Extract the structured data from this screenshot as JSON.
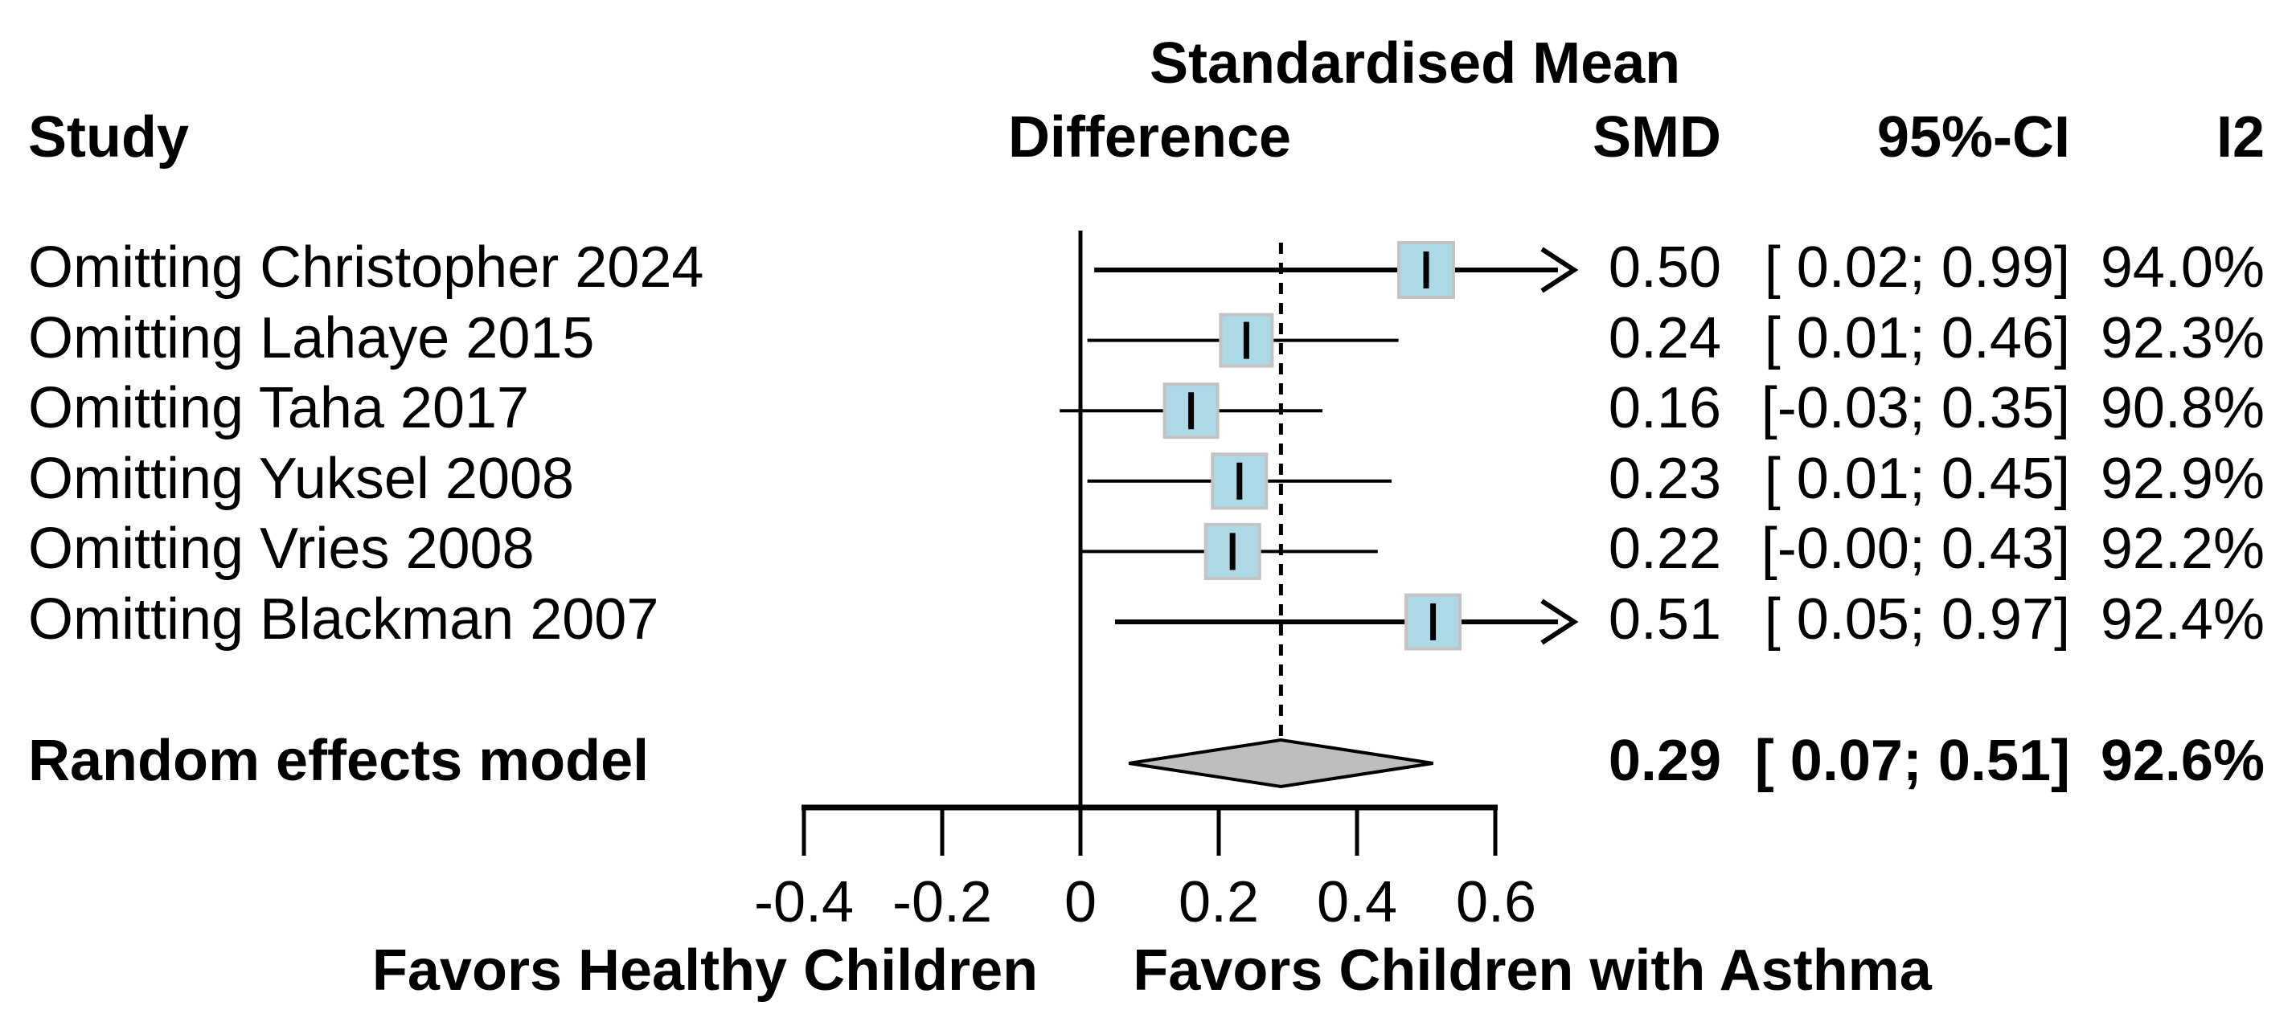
{
  "header": {
    "study": "Study",
    "effect_title_line1": "Standardised Mean",
    "effect_title_line2": "Difference",
    "smd": "SMD",
    "ci": "95%-CI",
    "i2": "I2"
  },
  "chart_data": {
    "type": "forest",
    "title": "Standardised Mean Difference",
    "rows": [
      {
        "label": "Omitting Christopher 2024",
        "smd": 0.5,
        "smd_text": "0.50",
        "ci_low": 0.02,
        "ci_high": 0.99,
        "ci_text": "[ 0.02; 0.99]",
        "i2_text": "94.0%",
        "square_size": 68
      },
      {
        "label": "Omitting Lahaye 2015",
        "smd": 0.24,
        "smd_text": "0.24",
        "ci_low": 0.01,
        "ci_high": 0.46,
        "ci_text": "[ 0.01; 0.46]",
        "i2_text": "92.3%",
        "square_size": 64
      },
      {
        "label": "Omitting Taha 2017",
        "smd": 0.16,
        "smd_text": "0.16",
        "ci_low": -0.03,
        "ci_high": 0.35,
        "ci_text": "[-0.03; 0.35]",
        "i2_text": "90.8%",
        "square_size": 66
      },
      {
        "label": "Omitting Yuksel 2008",
        "smd": 0.23,
        "smd_text": "0.23",
        "ci_low": 0.01,
        "ci_high": 0.45,
        "ci_text": "[ 0.01; 0.45]",
        "i2_text": "92.9%",
        "square_size": 67
      },
      {
        "label": "Omitting Vries 2008",
        "smd": 0.22,
        "smd_text": "0.22",
        "ci_low": -0.0,
        "ci_high": 0.43,
        "ci_text": "[-0.00; 0.43]",
        "i2_text": "92.2%",
        "square_size": 67
      },
      {
        "label": "Omitting Blackman 2007",
        "smd": 0.51,
        "smd_text": "0.51",
        "ci_low": 0.05,
        "ci_high": 0.97,
        "ci_text": "[ 0.05; 0.97]",
        "i2_text": "92.4%",
        "square_size": 67
      }
    ],
    "summary": {
      "label": "Random effects model",
      "smd": 0.29,
      "smd_text": "0.29",
      "ci_low": 0.07,
      "ci_high": 0.51,
      "ci_text": "[ 0.07; 0.51]",
      "i2_text": "92.6%"
    },
    "reference_line": 0,
    "dashed_line_at": 0.29,
    "x_axis": {
      "ticks": [
        -0.4,
        -0.2,
        0,
        0.2,
        0.4,
        0.6
      ],
      "tick_labels": [
        "-0.4",
        "-0.2",
        "0",
        "0.2",
        "0.4",
        "0.6"
      ],
      "xlim": [
        -0.4,
        0.6
      ],
      "grid": false
    },
    "footer_left_label": "Favors Healthy Children",
    "footer_right_label": "Favors Children with Asthma"
  },
  "colors": {
    "square_fill": "#ADD8E6",
    "square_border": "#C3C3C3",
    "diamond_fill": "#BEBEBE",
    "line": "#000000"
  }
}
